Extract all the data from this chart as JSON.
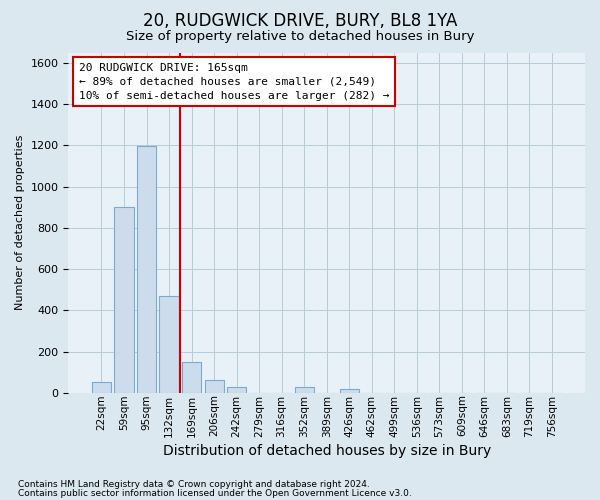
{
  "title": "20, RUDGWICK DRIVE, BURY, BL8 1YA",
  "subtitle": "Size of property relative to detached houses in Bury",
  "xlabel": "Distribution of detached houses by size in Bury",
  "ylabel": "Number of detached properties",
  "footnote1": "Contains HM Land Registry data © Crown copyright and database right 2024.",
  "footnote2": "Contains public sector information licensed under the Open Government Licence v3.0.",
  "categories": [
    "22sqm",
    "59sqm",
    "95sqm",
    "132sqm",
    "169sqm",
    "206sqm",
    "242sqm",
    "279sqm",
    "316sqm",
    "352sqm",
    "389sqm",
    "426sqm",
    "462sqm",
    "499sqm",
    "536sqm",
    "573sqm",
    "609sqm",
    "646sqm",
    "683sqm",
    "719sqm",
    "756sqm"
  ],
  "values": [
    55,
    900,
    1195,
    470,
    150,
    62,
    30,
    0,
    0,
    28,
    0,
    20,
    0,
    0,
    0,
    0,
    0,
    0,
    0,
    0,
    0
  ],
  "bar_color": "#cddcec",
  "bar_edge_color": "#7aabcf",
  "vline_color": "#cc0000",
  "vline_x": 3.5,
  "annotation_text": "20 RUDGWICK DRIVE: 165sqm\n← 89% of detached houses are smaller (2,549)\n10% of semi-detached houses are larger (282) →",
  "ylim_max": 1650,
  "yticks": [
    0,
    200,
    400,
    600,
    800,
    1000,
    1200,
    1400,
    1600
  ],
  "bg_color": "#dce8f0",
  "plot_bg_color": "#e8f0f8",
  "grid_color": "#b8ccd8",
  "title_fontsize": 12,
  "subtitle_fontsize": 9.5,
  "ylabel_fontsize": 8,
  "xlabel_fontsize": 10
}
